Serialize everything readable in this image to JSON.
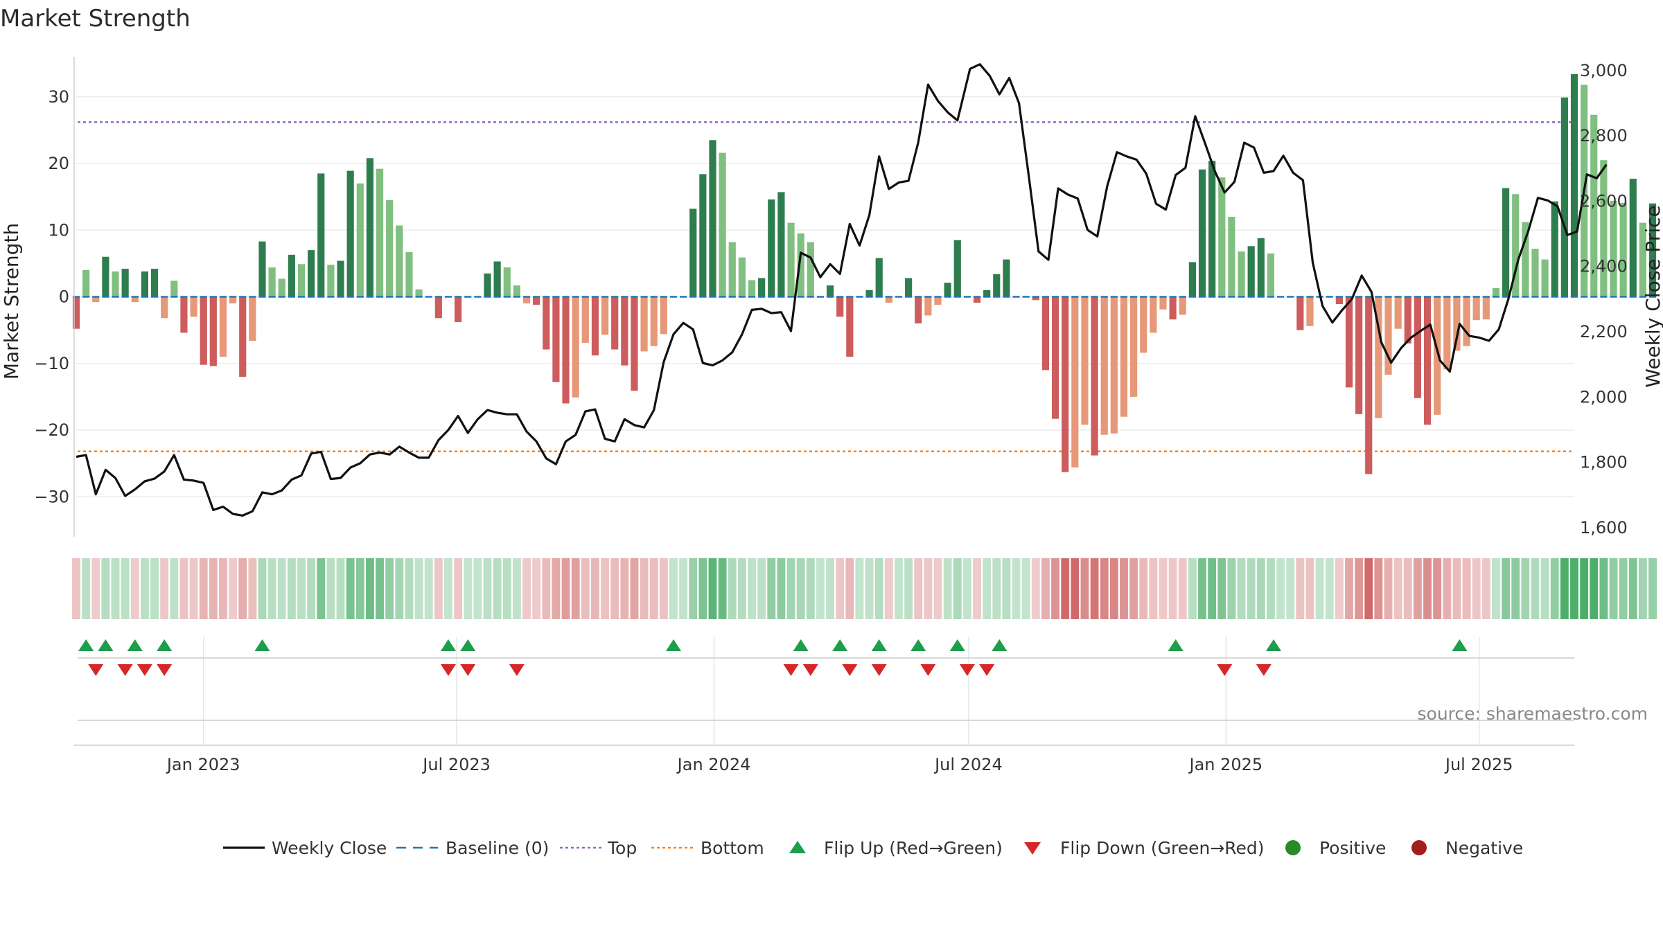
{
  "chart_data": {
    "type": "bar",
    "title": "Market Strength",
    "ylabel_left": "Market Strength",
    "ylabel_right": "Weekly Close Price",
    "source": "source: sharemaestro.com",
    "left_ylim": [
      -36,
      36
    ],
    "left_ticks": [
      30,
      20,
      10,
      0,
      -10,
      -20,
      -30
    ],
    "left_tick_labels": [
      "30",
      "20",
      "10",
      "0",
      "−10",
      "−20",
      "−30"
    ],
    "right_ylim": [
      1570,
      3040
    ],
    "right_ticks": [
      3000,
      2800,
      2600,
      2400,
      2200,
      2000,
      1800,
      1600
    ],
    "right_tick_labels": [
      "3,000",
      "2,800",
      "2,600",
      "2,400",
      "2,200",
      "2,000",
      "1,800",
      "1,600"
    ],
    "x_start": "2022-10-02",
    "x_end": "2025-09-07",
    "x_ticks": [
      "2023-01-01",
      "2023-07-01",
      "2024-01-01",
      "2024-07-01",
      "2025-01-01",
      "2025-07-01"
    ],
    "x_tick_labels": [
      "Jan 2023",
      "Jul 2023",
      "Jan 2024",
      "Jul 2024",
      "Jan 2025",
      "Jul 2025"
    ],
    "top_threshold": 26.2,
    "bottom_threshold": -23.2,
    "bar_start": "2022-10-02",
    "bar_step_days": 7,
    "strength": [
      -4.8,
      4,
      -0.8,
      6,
      3.8,
      4.2,
      -0.8,
      3.8,
      4.2,
      -3.2,
      2.4,
      -5.4,
      -3,
      -10.2,
      -10.4,
      -9,
      -1,
      -12,
      -6.6,
      8.3,
      4.4,
      2.7,
      6.3,
      4.9,
      7,
      18.5,
      4.8,
      5.4,
      18.9,
      17,
      20.8,
      19.2,
      14.5,
      10.7,
      6.7,
      1.1,
      0,
      -3.2,
      0,
      -3.8,
      0,
      0,
      3.5,
      5.3,
      4.4,
      1.7,
      -1,
      -1.2,
      -7.9,
      -12.8,
      -16,
      -15.1,
      -6.9,
      -8.8,
      -5.7,
      -7.9,
      -10.3,
      -14.1,
      -8.2,
      -7.4,
      -5.6,
      0,
      0,
      13.2,
      18.4,
      23.5,
      21.6,
      8.2,
      5.9,
      2.5,
      2.8,
      14.6,
      15.7,
      11.1,
      9.5,
      8.2,
      0,
      1.7,
      -3,
      -9,
      0,
      1,
      5.8,
      -0.9,
      0,
      2.8,
      -4,
      -2.8,
      -1.2,
      2.1,
      8.5,
      0,
      -0.9,
      1,
      3.4,
      5.6,
      0,
      0,
      -0.5,
      -11,
      -18.3,
      -26.3,
      -25.6,
      -19.2,
      -23.8,
      -20.7,
      -20.5,
      -18,
      -15,
      -8.4,
      -5.4,
      -1.9,
      -3.4,
      -2.7,
      5.2,
      19.1,
      20.4,
      17.9,
      12,
      6.8,
      7.6,
      8.8,
      6.5,
      0,
      0,
      -5,
      -4.4,
      0,
      0,
      -1.1,
      -13.6,
      -17.6,
      -26.6,
      -18.2,
      -11.7,
      -4.8,
      -7,
      -15.2,
      -19.2,
      -17.7,
      -10.9,
      -8.1,
      -7.4,
      -3.5,
      -3.4,
      1.3,
      16.3,
      15.4,
      11.2,
      7.2,
      5.6,
      14.3,
      29.9,
      33.4,
      31.8,
      27.3,
      20.5,
      14.4,
      14.1,
      17.7,
      11.1,
      14
    ],
    "strength_scale": [
      -36,
      36
    ],
    "price_series": [
      [
        "2022-10-02",
        1815
      ],
      [
        "2022-10-09",
        1820
      ],
      [
        "2022-10-16",
        1700
      ],
      [
        "2022-10-23",
        1775
      ],
      [
        "2022-10-30",
        1750
      ],
      [
        "2022-11-06",
        1695
      ],
      [
        "2022-11-13",
        1715
      ],
      [
        "2022-11-20",
        1740
      ],
      [
        "2022-11-27",
        1748
      ],
      [
        "2022-12-04",
        1770
      ],
      [
        "2022-12-11",
        1820
      ],
      [
        "2022-12-18",
        1745
      ],
      [
        "2022-12-25",
        1742
      ],
      [
        "2023-01-01",
        1735
      ],
      [
        "2023-01-08",
        1652
      ],
      [
        "2023-01-15",
        1662
      ],
      [
        "2023-01-22",
        1640
      ],
      [
        "2023-01-29",
        1635
      ],
      [
        "2023-02-05",
        1648
      ],
      [
        "2023-02-12",
        1706
      ],
      [
        "2023-02-19",
        1700
      ],
      [
        "2023-02-26",
        1712
      ],
      [
        "2023-03-05",
        1745
      ],
      [
        "2023-03-12",
        1758
      ],
      [
        "2023-03-19",
        1825
      ],
      [
        "2023-03-26",
        1830
      ],
      [
        "2023-04-02",
        1747
      ],
      [
        "2023-04-09",
        1750
      ],
      [
        "2023-04-16",
        1782
      ],
      [
        "2023-04-23",
        1795
      ],
      [
        "2023-04-30",
        1822
      ],
      [
        "2023-05-07",
        1828
      ],
      [
        "2023-05-14",
        1822
      ],
      [
        "2023-05-21",
        1846
      ],
      [
        "2023-05-28",
        1828
      ],
      [
        "2023-06-04",
        1812
      ],
      [
        "2023-06-11",
        1812
      ],
      [
        "2023-06-18",
        1866
      ],
      [
        "2023-06-25",
        1897
      ],
      [
        "2023-07-02",
        1940
      ],
      [
        "2023-07-09",
        1888
      ],
      [
        "2023-07-16",
        1930
      ],
      [
        "2023-07-23",
        1958
      ],
      [
        "2023-07-30",
        1950
      ],
      [
        "2023-08-06",
        1945
      ],
      [
        "2023-08-13",
        1945
      ],
      [
        "2023-08-20",
        1892
      ],
      [
        "2023-08-27",
        1862
      ],
      [
        "2023-09-03",
        1810
      ],
      [
        "2023-09-10",
        1792
      ],
      [
        "2023-09-17",
        1862
      ],
      [
        "2023-09-24",
        1882
      ],
      [
        "2023-10-01",
        1954
      ],
      [
        "2023-10-08",
        1960
      ],
      [
        "2023-10-15",
        1870
      ],
      [
        "2023-10-22",
        1862
      ],
      [
        "2023-10-29",
        1930
      ],
      [
        "2023-11-05",
        1912
      ],
      [
        "2023-11-12",
        1905
      ],
      [
        "2023-11-19",
        1958
      ],
      [
        "2023-11-26",
        2105
      ],
      [
        "2023-12-03",
        2190
      ],
      [
        "2023-12-10",
        2225
      ],
      [
        "2023-12-17",
        2205
      ],
      [
        "2023-12-24",
        2102
      ],
      [
        "2023-12-31",
        2095
      ],
      [
        "2024-01-07",
        2110
      ],
      [
        "2024-01-14",
        2135
      ],
      [
        "2024-01-21",
        2190
      ],
      [
        "2024-01-28",
        2265
      ],
      [
        "2024-02-04",
        2268
      ],
      [
        "2024-02-11",
        2255
      ],
      [
        "2024-02-18",
        2258
      ],
      [
        "2024-02-25",
        2200
      ],
      [
        "2024-03-03",
        2440
      ],
      [
        "2024-03-10",
        2425
      ],
      [
        "2024-03-17",
        2365
      ],
      [
        "2024-03-24",
        2405
      ],
      [
        "2024-03-31",
        2375
      ],
      [
        "2024-04-07",
        2528
      ],
      [
        "2024-04-14",
        2462
      ],
      [
        "2024-04-21",
        2555
      ],
      [
        "2024-04-28",
        2735
      ],
      [
        "2024-05-05",
        2635
      ],
      [
        "2024-05-12",
        2655
      ],
      [
        "2024-05-19",
        2660
      ],
      [
        "2024-05-26",
        2778
      ],
      [
        "2024-06-02",
        2955
      ],
      [
        "2024-06-09",
        2905
      ],
      [
        "2024-06-16",
        2870
      ],
      [
        "2024-06-23",
        2845
      ],
      [
        "2024-07-02",
        3003
      ],
      [
        "2024-07-09",
        3017
      ],
      [
        "2024-07-16",
        2982
      ],
      [
        "2024-07-23",
        2925
      ],
      [
        "2024-07-30",
        2975
      ],
      [
        "2024-08-06",
        2898
      ],
      [
        "2024-08-13",
        2675
      ],
      [
        "2024-08-20",
        2444
      ],
      [
        "2024-08-27",
        2418
      ],
      [
        "2024-09-03",
        2637
      ],
      [
        "2024-09-10",
        2618
      ],
      [
        "2024-09-17",
        2606
      ],
      [
        "2024-09-24",
        2510
      ],
      [
        "2024-10-01",
        2490
      ],
      [
        "2024-10-08",
        2643
      ],
      [
        "2024-10-15",
        2748
      ],
      [
        "2024-10-22",
        2735
      ],
      [
        "2024-10-29",
        2725
      ],
      [
        "2024-11-05",
        2682
      ],
      [
        "2024-11-12",
        2590
      ],
      [
        "2024-11-19",
        2572
      ],
      [
        "2024-11-26",
        2678
      ],
      [
        "2024-12-03",
        2700
      ],
      [
        "2024-12-10",
        2858
      ],
      [
        "2024-12-17",
        2775
      ],
      [
        "2024-12-24",
        2690
      ],
      [
        "2024-12-31",
        2624
      ],
      [
        "2025-01-07",
        2657
      ],
      [
        "2025-01-14",
        2777
      ],
      [
        "2025-01-21",
        2762
      ],
      [
        "2025-01-28",
        2685
      ],
      [
        "2025-02-04",
        2690
      ],
      [
        "2025-02-11",
        2737
      ],
      [
        "2025-02-18",
        2685
      ],
      [
        "2025-02-25",
        2662
      ],
      [
        "2025-03-04",
        2410
      ],
      [
        "2025-03-11",
        2277
      ],
      [
        "2025-03-18",
        2226
      ],
      [
        "2025-03-25",
        2264
      ],
      [
        "2025-04-01",
        2298
      ],
      [
        "2025-04-08",
        2370
      ],
      [
        "2025-04-15",
        2320
      ],
      [
        "2025-04-22",
        2166
      ],
      [
        "2025-04-29",
        2103
      ],
      [
        "2025-05-06",
        2147
      ],
      [
        "2025-05-13",
        2179
      ],
      [
        "2025-05-20",
        2200
      ],
      [
        "2025-05-27",
        2220
      ],
      [
        "2025-06-03",
        2110
      ],
      [
        "2025-06-10",
        2076
      ],
      [
        "2025-06-17",
        2222
      ],
      [
        "2025-06-24",
        2185
      ],
      [
        "2025-07-01",
        2180
      ],
      [
        "2025-07-08",
        2170
      ],
      [
        "2025-07-15",
        2205
      ],
      [
        "2025-07-22",
        2300
      ],
      [
        "2025-07-29",
        2420
      ],
      [
        "2025-08-05",
        2505
      ],
      [
        "2025-08-12",
        2608
      ],
      [
        "2025-08-19",
        2600
      ],
      [
        "2025-08-26",
        2582
      ],
      [
        "2025-09-02",
        2494
      ],
      [
        "2025-09-09",
        2505
      ],
      [
        "2025-09-16",
        2680
      ],
      [
        "2025-09-23",
        2668
      ],
      [
        "2025-09-30",
        2710
      ]
    ],
    "flip_up_dates": [
      "2022-10-09",
      "2022-10-23",
      "2022-11-13",
      "2022-12-04",
      "2023-02-12",
      "2023-06-25",
      "2023-07-09",
      "2023-12-03",
      "2024-03-03",
      "2024-03-31",
      "2024-04-28",
      "2024-05-26",
      "2024-06-23",
      "2024-07-23",
      "2024-11-26",
      "2025-02-04",
      "2025-06-17"
    ],
    "flip_down_dates": [
      "2022-10-16",
      "2022-11-06",
      "2022-11-20",
      "2022-12-04",
      "2023-06-25",
      "2023-07-09",
      "2023-08-13",
      "2024-02-25",
      "2024-03-10",
      "2024-04-07",
      "2024-04-28",
      "2024-06-02",
      "2024-06-30",
      "2024-07-14",
      "2024-12-31",
      "2025-01-28"
    ],
    "legend": [
      "Weekly Close",
      "Baseline (0)",
      "Top",
      "Bottom",
      "Flip Up (Red→Green)",
      "Flip Down (Green→Red)",
      "Positive",
      "Negative"
    ],
    "legend_position": "bottom",
    "grid": true,
    "colors": {
      "pos_strong": "#2e7d4f",
      "pos_weak": "#80bf80",
      "neg_strong": "#cd5c5c",
      "neg_weak": "#e69878",
      "price_line": "#111111",
      "baseline": "#1f77b4",
      "top_line": "#9467bd",
      "bottom_line": "#ff7f0e",
      "flip_up": "#1e9e4a",
      "flip_down": "#d62728",
      "positive_dot": "#2a8a2a",
      "negative_dot": "#a02020"
    }
  }
}
